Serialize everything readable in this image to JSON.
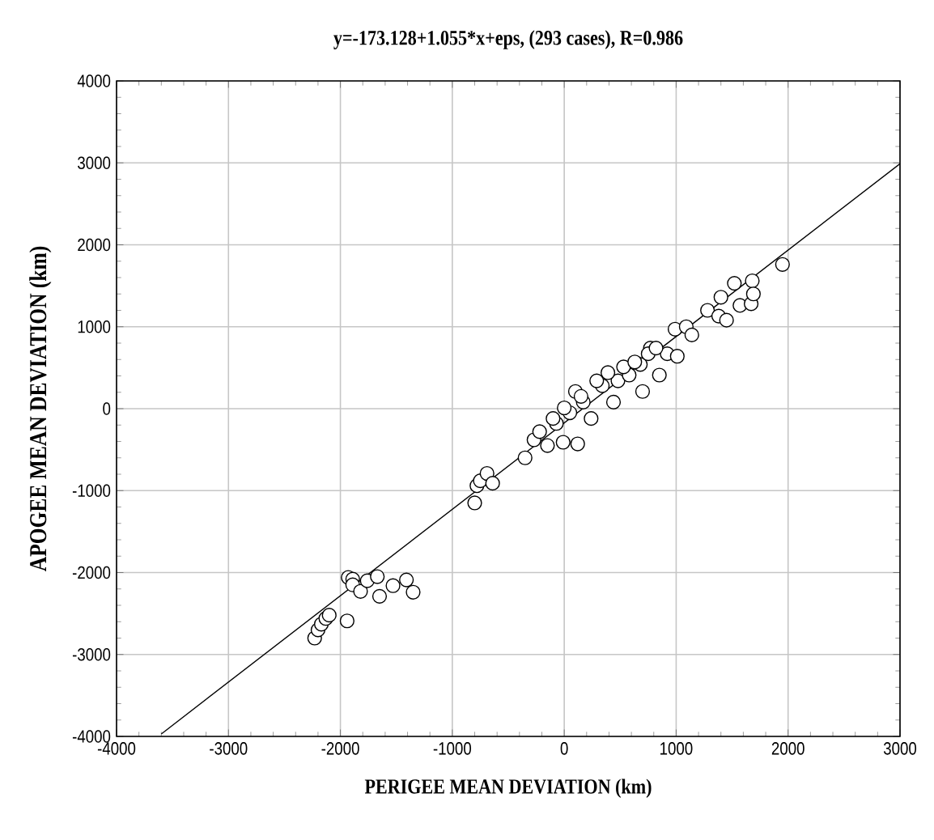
{
  "chart_data": {
    "type": "scatter",
    "title": "y=-173.128+1.055*x+eps,    (293 cases),   R=0.986",
    "xlabel": "PERIGEE MEAN DEVIATION (km)",
    "ylabel": "APOGEE MEAN DEVIATION (km)",
    "xlim": [
      -4000,
      3000
    ],
    "ylim": [
      -4000,
      4000
    ],
    "xticks": [
      -4000,
      -3000,
      -2000,
      -1000,
      0,
      1000,
      2000,
      3000
    ],
    "yticks": [
      -4000,
      -3000,
      -2000,
      -1000,
      0,
      1000,
      2000,
      3000,
      4000
    ],
    "grid": true,
    "series": [
      {
        "type": "scatter",
        "marker": "circle",
        "color": "#000000",
        "x": [
          -2230,
          -2200,
          -2170,
          -2130,
          -2100,
          -1940,
          -1930,
          -1890,
          -1890,
          -1820,
          -1760,
          -1670,
          -1650,
          -1530,
          -1410,
          -1350,
          -800,
          -780,
          -750,
          -690,
          -640,
          -350,
          -270,
          -220,
          -150,
          -10,
          120,
          100,
          -70,
          50,
          170,
          240,
          340,
          440,
          480,
          580,
          700,
          680,
          770,
          850,
          920,
          1010,
          990,
          1090,
          1140,
          1280,
          1380,
          1450,
          1400,
          1520,
          1570,
          1670,
          1680,
          1690,
          1950,
          -100,
          0,
          150,
          290,
          390,
          530,
          630,
          750,
          820
        ],
        "values": [
          -2800,
          -2700,
          -2630,
          -2560,
          -2520,
          -2590,
          -2060,
          -2080,
          -2150,
          -2230,
          -2100,
          -2050,
          -2290,
          -2160,
          -2090,
          -2240,
          -1150,
          -940,
          -880,
          -790,
          -910,
          -600,
          -380,
          -280,
          -450,
          -410,
          -430,
          210,
          -180,
          -50,
          80,
          -120,
          280,
          80,
          340,
          410,
          210,
          540,
          740,
          410,
          670,
          640,
          970,
          1000,
          900,
          1200,
          1130,
          1080,
          1360,
          1530,
          1260,
          1280,
          1560,
          1400,
          1760,
          -120,
          10,
          150,
          340,
          440,
          510,
          570,
          670,
          740
        ]
      },
      {
        "type": "line",
        "marker": "none",
        "color": "#000000",
        "x": [
          -3600,
          3000
        ],
        "values": [
          -3970,
          2990
        ]
      }
    ]
  }
}
